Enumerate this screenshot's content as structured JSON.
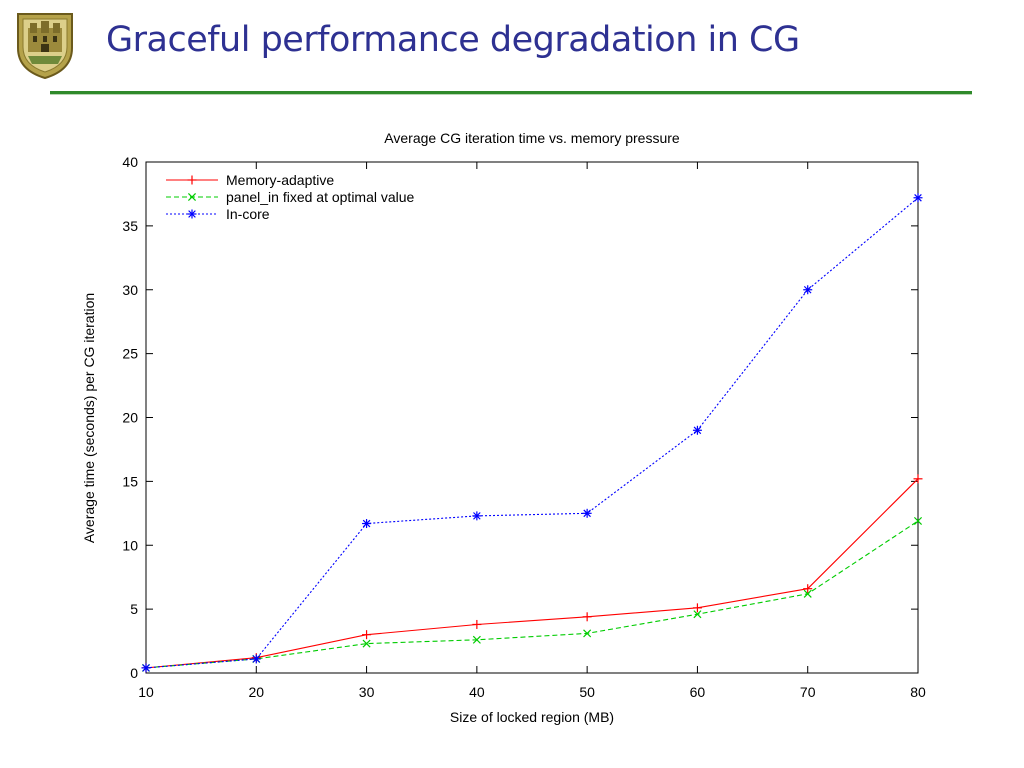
{
  "slide": {
    "title": "Graceful performance degradation in CG",
    "accent_color": "#2e3192",
    "rule_color": "#2f8a2a",
    "logo_icon": "university-crest-icon"
  },
  "chart_data": {
    "type": "line",
    "title": "Average CG iteration time vs. memory pressure",
    "xlabel": "Size of locked region (MB)",
    "ylabel": "Average time (seconds) per CG iteration",
    "xlim": [
      10,
      80
    ],
    "ylim": [
      0,
      40
    ],
    "xticks": [
      10,
      20,
      30,
      40,
      50,
      60,
      70,
      80
    ],
    "yticks": [
      0,
      5,
      10,
      15,
      20,
      25,
      30,
      35,
      40
    ],
    "grid": false,
    "legend_position": "top-left",
    "x": [
      10,
      20,
      30,
      40,
      50,
      60,
      70,
      80
    ],
    "series": [
      {
        "name": "Memory-adaptive",
        "values": [
          0.4,
          1.2,
          3.0,
          3.8,
          4.4,
          5.1,
          6.6,
          15.2
        ],
        "color": "#ff0000",
        "marker": "plus",
        "dash": "solid"
      },
      {
        "name": "panel_in fixed at optimal value",
        "values": [
          0.4,
          1.1,
          2.3,
          2.6,
          3.1,
          4.6,
          6.2,
          11.9
        ],
        "color": "#00cc00",
        "marker": "cross",
        "dash": "dashed"
      },
      {
        "name": "In-core",
        "values": [
          0.4,
          1.1,
          11.7,
          12.3,
          12.5,
          19.0,
          30.0,
          37.2
        ],
        "color": "#0000ff",
        "marker": "star",
        "dash": "dotted"
      }
    ]
  }
}
